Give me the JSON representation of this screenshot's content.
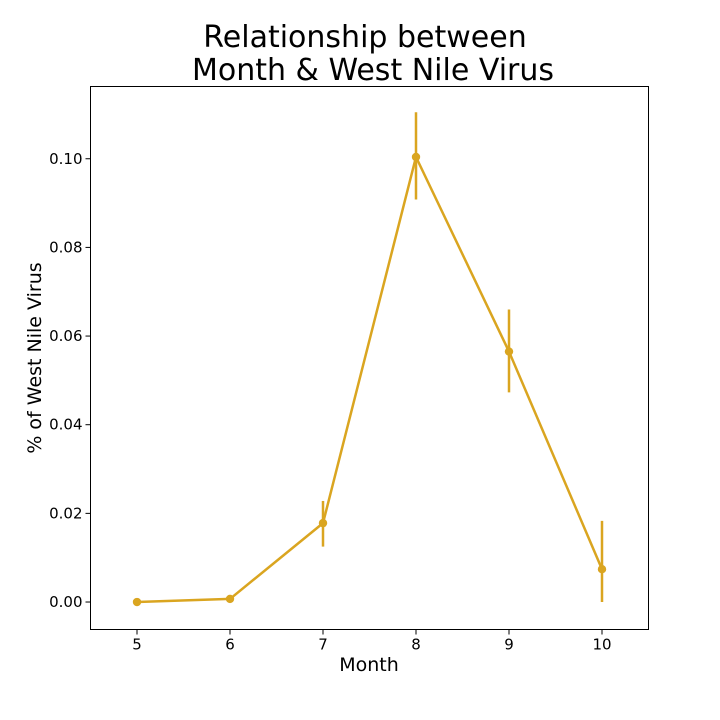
{
  "chart_data": {
    "type": "line",
    "title_lines": [
      "Relationship between",
      "Month & West Nile Virus"
    ],
    "xlabel": "Month",
    "ylabel": "% of West Nile Virus",
    "categories": [
      "5",
      "6",
      "7",
      "8",
      "9",
      "10"
    ],
    "xlim": [
      4.5,
      10.5
    ],
    "ylim": [
      -0.0062,
      0.1163
    ],
    "yticks": [
      "0.00",
      "0.02",
      "0.04",
      "0.06",
      "0.08",
      "0.10"
    ],
    "grid": false,
    "series": [
      {
        "x": [
          5,
          6,
          7,
          8,
          9,
          10
        ],
        "values": [
          0.0,
          0.0007,
          0.0178,
          0.1004,
          0.0565,
          0.0074
        ],
        "error_low": [
          0.0,
          0.0002,
          0.0125,
          0.0908,
          0.0473,
          0.0
        ],
        "error_high": [
          0.0,
          0.0016,
          0.0228,
          0.1105,
          0.066,
          0.0183
        ],
        "color": "#DAA520"
      }
    ]
  }
}
